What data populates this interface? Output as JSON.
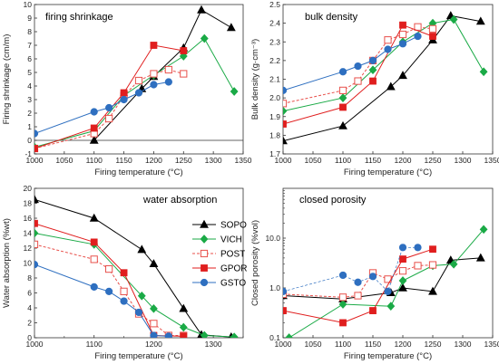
{
  "chart_data": [
    {
      "type": "line",
      "title": "firing shrinkage",
      "xlabel": "Firing temperature (°C)",
      "ylabel": "Firing shrinkage (cm/m)",
      "xlim": [
        1000,
        1350
      ],
      "ylim": [
        -1,
        10
      ],
      "xticks": [
        "1000",
        "1050",
        "1100",
        "1150",
        "1200",
        "1250",
        "1300",
        "1350"
      ],
      "yticks": [
        "-1",
        "0",
        "1",
        "2",
        "3",
        "4",
        "5",
        "6",
        "7",
        "8",
        "9",
        "10"
      ],
      "ytick_values": [
        -1,
        0,
        1,
        2,
        3,
        4,
        5,
        6,
        7,
        8,
        9,
        10
      ],
      "scale": "linear",
      "series": [
        {
          "name": "SOPO",
          "x": [
            1100,
            1180,
            1200,
            1250,
            1280,
            1330
          ],
          "y": [
            0.0,
            3.8,
            4.7,
            6.8,
            9.6,
            8.3
          ]
        },
        {
          "name": "VICH",
          "x": [
            1000,
            1100,
            1150,
            1200,
            1250,
            1285,
            1335
          ],
          "y": [
            -0.5,
            0.7,
            3.3,
            4.8,
            6.2,
            7.5,
            3.6
          ]
        },
        {
          "name": "POST",
          "x": [
            1000,
            1100,
            1125,
            1150,
            1175,
            1200,
            1225,
            1250
          ],
          "y": [
            -0.6,
            0.5,
            1.6,
            3.3,
            4.4,
            4.9,
            5.2,
            4.9
          ]
        },
        {
          "name": "GPOR",
          "x": [
            1000,
            1100,
            1150,
            1200,
            1250
          ],
          "y": [
            -0.6,
            0.9,
            3.5,
            7.0,
            6.6
          ]
        },
        {
          "name": "GSTO",
          "x": [
            1000,
            1100,
            1125,
            1150,
            1175,
            1200,
            1225
          ],
          "y": [
            0.5,
            2.1,
            2.4,
            3.0,
            3.5,
            4.1,
            4.3
          ]
        }
      ]
    },
    {
      "type": "line",
      "title": "bulk density",
      "xlabel": "Firing temperature (°C)",
      "ylabel": "Bulk density (g·cm⁻³)",
      "xlim": [
        1000,
        1350
      ],
      "ylim": [
        1.7,
        2.5
      ],
      "xticks": [
        "1000",
        "1050",
        "1100",
        "1150",
        "1200",
        "1250",
        "1300",
        "1350"
      ],
      "yticks": [
        "1.7",
        "1.8",
        "1.9",
        "2.0",
        "2.1",
        "2.2",
        "2.3",
        "2.4",
        "2.5"
      ],
      "ytick_values": [
        1.7,
        1.8,
        1.9,
        2.0,
        2.1,
        2.2,
        2.3,
        2.4,
        2.5
      ],
      "scale": "linear",
      "series": [
        {
          "name": "SOPO",
          "x": [
            1000,
            1100,
            1180,
            1200,
            1250,
            1280,
            1330
          ],
          "y": [
            1.77,
            1.85,
            2.06,
            2.12,
            2.31,
            2.44,
            2.41
          ]
        },
        {
          "name": "VICH",
          "x": [
            1000,
            1100,
            1150,
            1200,
            1250,
            1285,
            1335
          ],
          "y": [
            1.93,
            2.0,
            2.15,
            2.3,
            2.4,
            2.42,
            2.14
          ]
        },
        {
          "name": "POST",
          "x": [
            1000,
            1100,
            1125,
            1150,
            1175,
            1200,
            1225,
            1250
          ],
          "y": [
            1.97,
            2.04,
            2.09,
            2.2,
            2.31,
            2.34,
            2.38,
            2.37
          ]
        },
        {
          "name": "GPOR",
          "x": [
            1000,
            1100,
            1150,
            1200,
            1250
          ],
          "y": [
            1.86,
            1.95,
            2.09,
            2.39,
            2.33
          ]
        },
        {
          "name": "GSTO",
          "x": [
            1000,
            1100,
            1125,
            1150,
            1175,
            1200,
            1225
          ],
          "y": [
            2.04,
            2.14,
            2.17,
            2.2,
            2.26,
            2.29,
            2.33
          ]
        }
      ]
    },
    {
      "type": "line",
      "title": "water absorption",
      "xlabel": "Firing temperature (°C)",
      "ylabel": "Water absorption (%wt)",
      "xlim": [
        1000,
        1350
      ],
      "ylim": [
        0,
        20
      ],
      "xticks": [
        "1000",
        "1100",
        "1200",
        "1300"
      ],
      "yticks": [
        "0",
        "2",
        "4",
        "6",
        "8",
        "10",
        "12",
        "14",
        "16",
        "18",
        "20"
      ],
      "ytick_values": [
        0,
        2,
        4,
        6,
        8,
        10,
        12,
        14,
        16,
        18,
        20
      ],
      "scale": "linear",
      "legend": "center-right",
      "series": [
        {
          "name": "SOPO",
          "x": [
            1000,
            1100,
            1180,
            1200,
            1250,
            1280,
            1330
          ],
          "y": [
            18.5,
            16.0,
            11.8,
            9.9,
            3.9,
            0.4,
            0.1
          ]
        },
        {
          "name": "VICH",
          "x": [
            1000,
            1100,
            1180,
            1200,
            1250,
            1285,
            1335
          ],
          "y": [
            14.0,
            12.5,
            5.6,
            3.9,
            1.4,
            0.3,
            0.1
          ]
        },
        {
          "name": "POST",
          "x": [
            1000,
            1100,
            1125,
            1150,
            1175,
            1200,
            1225,
            1250
          ],
          "y": [
            12.5,
            10.5,
            9.2,
            6.2,
            3.2,
            1.9,
            0.3,
            0.3
          ]
        },
        {
          "name": "GPOR",
          "x": [
            1000,
            1100,
            1150,
            1200,
            1250
          ],
          "y": [
            15.3,
            12.8,
            8.7,
            0.3,
            0.2
          ]
        },
        {
          "name": "GSTO",
          "x": [
            1000,
            1100,
            1125,
            1150,
            1175,
            1200,
            1225
          ],
          "y": [
            9.8,
            6.8,
            6.2,
            4.9,
            3.4,
            0.3,
            0.2
          ]
        }
      ]
    },
    {
      "type": "line",
      "title": "closed porosity",
      "xlabel": "Firing temperature (°C)",
      "ylabel": "Closed porosity (%vol)",
      "xlim": [
        1000,
        1350
      ],
      "ylim": [
        0.1,
        100
      ],
      "xticks": [
        "1000",
        "1050",
        "1100",
        "1150",
        "1200",
        "1250",
        "1300",
        "1350"
      ],
      "yticks": [
        "0.1",
        "1.0",
        "10.0"
      ],
      "ytick_values": [
        0.1,
        1,
        10
      ],
      "scale": "log",
      "series": [
        {
          "name": "SOPO",
          "x": [
            1000,
            1100,
            1180,
            1200,
            1250,
            1280,
            1330
          ],
          "y": [
            0.7,
            0.6,
            0.8,
            1.0,
            0.85,
            3.6,
            4.0
          ]
        },
        {
          "name": "VICH",
          "x": [
            1010,
            1100,
            1180,
            1200,
            1250,
            1285,
            1335
          ],
          "y": [
            0.1,
            0.47,
            0.43,
            1.4,
            2.8,
            3.0,
            15.0
          ]
        },
        {
          "name": "POST",
          "x": [
            1000,
            1100,
            1125,
            1150,
            1175,
            1200,
            1225,
            1250
          ],
          "y": [
            0.75,
            0.65,
            0.7,
            2.0,
            1.5,
            2.2,
            2.8,
            2.9
          ]
        },
        {
          "name": "GPOR",
          "x": [
            1000,
            1100,
            1150,
            1200,
            1250
          ],
          "y": [
            0.35,
            0.2,
            0.35,
            3.8,
            6.0
          ]
        },
        {
          "name": "GSTO",
          "x": [
            1000,
            1100,
            1125,
            1150,
            1175,
            1200,
            1225
          ],
          "y": [
            0.85,
            1.8,
            1.3,
            1.7,
            0.85,
            6.5,
            6.5
          ]
        }
      ]
    }
  ],
  "legend": [
    {
      "name": "SOPO",
      "color": "#000000",
      "marker": "triangle",
      "fill": "filled",
      "dash": "solid"
    },
    {
      "name": "VICH",
      "color": "#1aaa46",
      "marker": "diamond",
      "fill": "filled",
      "dash": "solid"
    },
    {
      "name": "POST",
      "color": "#e8504b",
      "marker": "square",
      "fill": "open",
      "dash": "dashed"
    },
    {
      "name": "GPOR",
      "color": "#e01e1e",
      "marker": "square",
      "fill": "filled",
      "dash": "solid"
    },
    {
      "name": "GSTO",
      "color": "#2e6fc0",
      "marker": "circle",
      "fill": "filled",
      "dash": "solid"
    }
  ]
}
